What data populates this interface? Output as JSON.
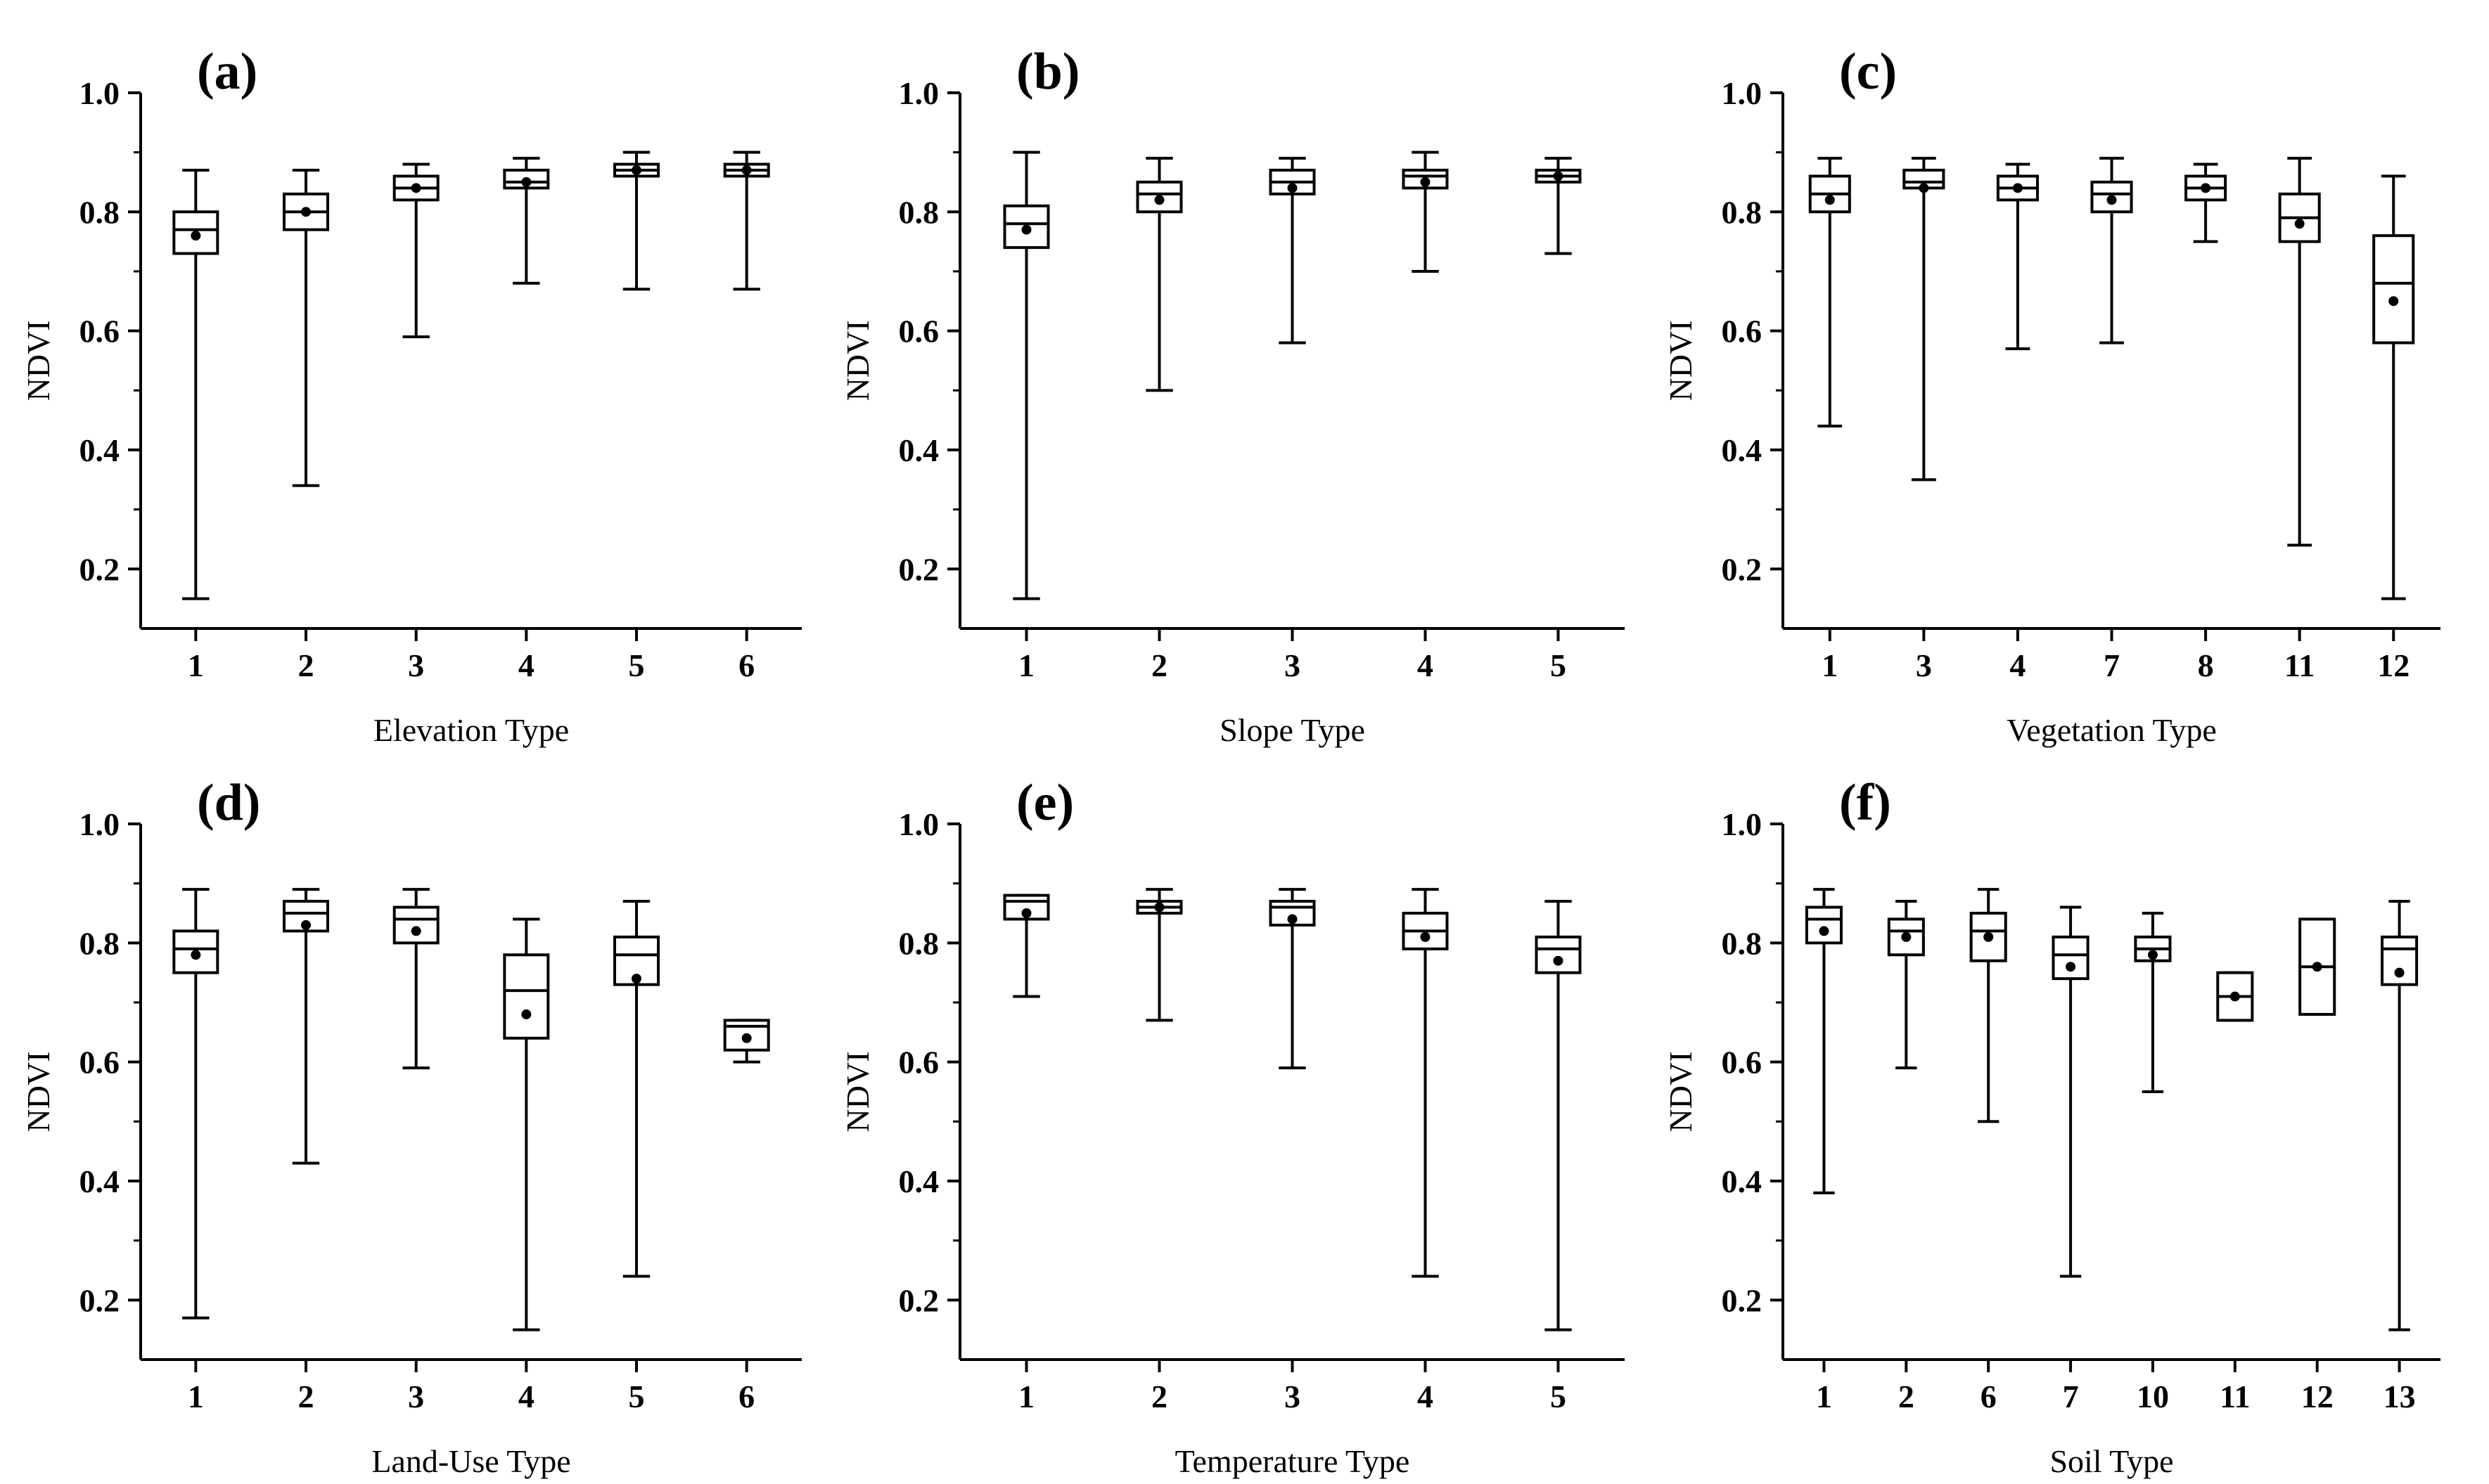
{
  "chart_data": [
    {
      "type": "box",
      "panel_label": "(a)",
      "xlabel": "Elevation Type",
      "ylabel": "NDVI",
      "ylim": [
        0.1,
        1.0
      ],
      "yticks": [
        "0.2",
        "0.4",
        "0.6",
        "0.8",
        "1.0"
      ],
      "categories": [
        "1",
        "2",
        "3",
        "4",
        "5",
        "6"
      ],
      "boxes": [
        {
          "min": 0.15,
          "q1": 0.73,
          "median": 0.77,
          "q3": 0.8,
          "max": 0.87,
          "mean": 0.76
        },
        {
          "min": 0.34,
          "q1": 0.77,
          "median": 0.8,
          "q3": 0.83,
          "max": 0.87,
          "mean": 0.8
        },
        {
          "min": 0.59,
          "q1": 0.82,
          "median": 0.84,
          "q3": 0.86,
          "max": 0.88,
          "mean": 0.84
        },
        {
          "min": 0.68,
          "q1": 0.84,
          "median": 0.85,
          "q3": 0.87,
          "max": 0.89,
          "mean": 0.85
        },
        {
          "min": 0.67,
          "q1": 0.86,
          "median": 0.87,
          "q3": 0.88,
          "max": 0.9,
          "mean": 0.87
        },
        {
          "min": 0.67,
          "q1": 0.86,
          "median": 0.87,
          "q3": 0.88,
          "max": 0.9,
          "mean": 0.87
        }
      ]
    },
    {
      "type": "box",
      "panel_label": "(b)",
      "xlabel": "Slope Type",
      "ylabel": "NDVI",
      "ylim": [
        0.1,
        1.0
      ],
      "yticks": [
        "0.2",
        "0.4",
        "0.6",
        "0.8",
        "1.0"
      ],
      "categories": [
        "1",
        "2",
        "3",
        "4",
        "5"
      ],
      "boxes": [
        {
          "min": 0.15,
          "q1": 0.74,
          "median": 0.78,
          "q3": 0.81,
          "max": 0.9,
          "mean": 0.77
        },
        {
          "min": 0.5,
          "q1": 0.8,
          "median": 0.83,
          "q3": 0.85,
          "max": 0.89,
          "mean": 0.82
        },
        {
          "min": 0.58,
          "q1": 0.83,
          "median": 0.85,
          "q3": 0.87,
          "max": 0.89,
          "mean": 0.84
        },
        {
          "min": 0.7,
          "q1": 0.84,
          "median": 0.86,
          "q3": 0.87,
          "max": 0.9,
          "mean": 0.85
        },
        {
          "min": 0.73,
          "q1": 0.85,
          "median": 0.86,
          "q3": 0.87,
          "max": 0.89,
          "mean": 0.86
        }
      ]
    },
    {
      "type": "box",
      "panel_label": "(c)",
      "xlabel": "Vegetation Type",
      "ylabel": "NDVI",
      "ylim": [
        0.1,
        1.0
      ],
      "yticks": [
        "0.2",
        "0.4",
        "0.6",
        "0.8",
        "1.0"
      ],
      "categories": [
        "1",
        "3",
        "4",
        "7",
        "8",
        "11",
        "12"
      ],
      "boxes": [
        {
          "min": 0.44,
          "q1": 0.8,
          "median": 0.83,
          "q3": 0.86,
          "max": 0.89,
          "mean": 0.82
        },
        {
          "min": 0.35,
          "q1": 0.84,
          "median": 0.85,
          "q3": 0.87,
          "max": 0.89,
          "mean": 0.84
        },
        {
          "min": 0.57,
          "q1": 0.82,
          "median": 0.84,
          "q3": 0.86,
          "max": 0.88,
          "mean": 0.84
        },
        {
          "min": 0.58,
          "q1": 0.8,
          "median": 0.83,
          "q3": 0.85,
          "max": 0.89,
          "mean": 0.82
        },
        {
          "min": 0.75,
          "q1": 0.82,
          "median": 0.84,
          "q3": 0.86,
          "max": 0.88,
          "mean": 0.84
        },
        {
          "min": 0.24,
          "q1": 0.75,
          "median": 0.79,
          "q3": 0.83,
          "max": 0.89,
          "mean": 0.78
        },
        {
          "min": 0.15,
          "q1": 0.58,
          "median": 0.68,
          "q3": 0.76,
          "max": 0.86,
          "mean": 0.65
        }
      ]
    },
    {
      "type": "box",
      "panel_label": "(d)",
      "xlabel": "Land-Use Type",
      "ylabel": "NDVI",
      "ylim": [
        0.1,
        1.0
      ],
      "yticks": [
        "0.2",
        "0.4",
        "0.6",
        "0.8",
        "1.0"
      ],
      "categories": [
        "1",
        "2",
        "3",
        "4",
        "5",
        "6"
      ],
      "boxes": [
        {
          "min": 0.17,
          "q1": 0.75,
          "median": 0.79,
          "q3": 0.82,
          "max": 0.89,
          "mean": 0.78
        },
        {
          "min": 0.43,
          "q1": 0.82,
          "median": 0.85,
          "q3": 0.87,
          "max": 0.89,
          "mean": 0.83
        },
        {
          "min": 0.59,
          "q1": 0.8,
          "median": 0.84,
          "q3": 0.86,
          "max": 0.89,
          "mean": 0.82
        },
        {
          "min": 0.15,
          "q1": 0.64,
          "median": 0.72,
          "q3": 0.78,
          "max": 0.84,
          "mean": 0.68
        },
        {
          "min": 0.24,
          "q1": 0.73,
          "median": 0.78,
          "q3": 0.81,
          "max": 0.87,
          "mean": 0.74
        },
        {
          "min": 0.6,
          "q1": 0.62,
          "median": 0.66,
          "q3": 0.67,
          "max": 0.67,
          "mean": 0.64
        }
      ]
    },
    {
      "type": "box",
      "panel_label": "(e)",
      "xlabel": "Temperature Type",
      "ylabel": "NDVI",
      "ylim": [
        0.1,
        1.0
      ],
      "yticks": [
        "0.2",
        "0.4",
        "0.6",
        "0.8",
        "1.0"
      ],
      "categories": [
        "1",
        "2",
        "3",
        "4",
        "5"
      ],
      "boxes": [
        {
          "min": 0.71,
          "q1": 0.84,
          "median": 0.87,
          "q3": 0.88,
          "max": 0.88,
          "mean": 0.85
        },
        {
          "min": 0.67,
          "q1": 0.85,
          "median": 0.86,
          "q3": 0.87,
          "max": 0.89,
          "mean": 0.86
        },
        {
          "min": 0.59,
          "q1": 0.83,
          "median": 0.86,
          "q3": 0.87,
          "max": 0.89,
          "mean": 0.84
        },
        {
          "min": 0.24,
          "q1": 0.79,
          "median": 0.82,
          "q3": 0.85,
          "max": 0.89,
          "mean": 0.81
        },
        {
          "min": 0.15,
          "q1": 0.75,
          "median": 0.79,
          "q3": 0.81,
          "max": 0.87,
          "mean": 0.77
        }
      ]
    },
    {
      "type": "box",
      "panel_label": "(f)",
      "xlabel": "Soil Type",
      "ylabel": "NDVI",
      "ylim": [
        0.1,
        1.0
      ],
      "yticks": [
        "0.2",
        "0.4",
        "0.6",
        "0.8",
        "1.0"
      ],
      "categories": [
        "1",
        "2",
        "6",
        "7",
        "10",
        "11",
        "12",
        "13"
      ],
      "boxes": [
        {
          "min": 0.38,
          "q1": 0.8,
          "median": 0.84,
          "q3": 0.86,
          "max": 0.89,
          "mean": 0.82
        },
        {
          "min": 0.59,
          "q1": 0.78,
          "median": 0.82,
          "q3": 0.84,
          "max": 0.87,
          "mean": 0.81
        },
        {
          "min": 0.5,
          "q1": 0.77,
          "median": 0.82,
          "q3": 0.85,
          "max": 0.89,
          "mean": 0.81
        },
        {
          "min": 0.24,
          "q1": 0.74,
          "median": 0.78,
          "q3": 0.81,
          "max": 0.86,
          "mean": 0.76
        },
        {
          "min": 0.55,
          "q1": 0.77,
          "median": 0.79,
          "q3": 0.81,
          "max": 0.85,
          "mean": 0.78
        },
        {
          "min": 0.67,
          "q1": 0.67,
          "median": 0.71,
          "q3": 0.75,
          "max": 0.75,
          "mean": 0.71
        },
        {
          "min": 0.68,
          "q1": 0.68,
          "median": 0.76,
          "q3": 0.84,
          "max": 0.84,
          "mean": 0.76
        },
        {
          "min": 0.15,
          "q1": 0.73,
          "median": 0.79,
          "q3": 0.81,
          "max": 0.87,
          "mean": 0.75
        }
      ]
    }
  ]
}
